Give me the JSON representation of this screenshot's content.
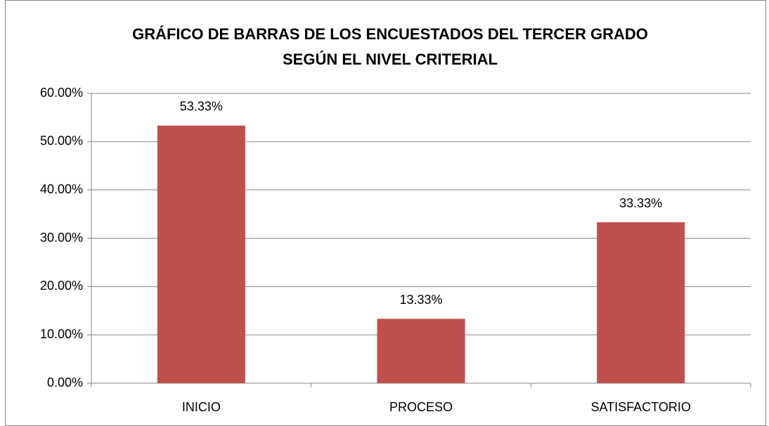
{
  "chart_data": {
    "type": "bar",
    "title": [
      "GRÁFICO DE BARRAS DE LOS ENCUESTADOS DEL TERCER GRADO",
      "SEGÚN EL NIVEL CRITERIAL"
    ],
    "categories": [
      "INICIO",
      "PROCESO",
      "SATISFACTORIO"
    ],
    "values": [
      53.33,
      13.33,
      33.33
    ],
    "value_labels": [
      "53.33%",
      "13.33%",
      "33.33%"
    ],
    "color": "#c0504d",
    "ylim": [
      0,
      60
    ],
    "yticks": [
      {
        "value": 0,
        "label": "0.00%"
      },
      {
        "value": 10,
        "label": "10.00%"
      },
      {
        "value": 20,
        "label": "20.00%"
      },
      {
        "value": 30,
        "label": "30.00%"
      },
      {
        "value": 40,
        "label": "40.00%"
      },
      {
        "value": 50,
        "label": "50.00%"
      },
      {
        "value": 60,
        "label": "60.00%"
      }
    ],
    "grid": true
  }
}
